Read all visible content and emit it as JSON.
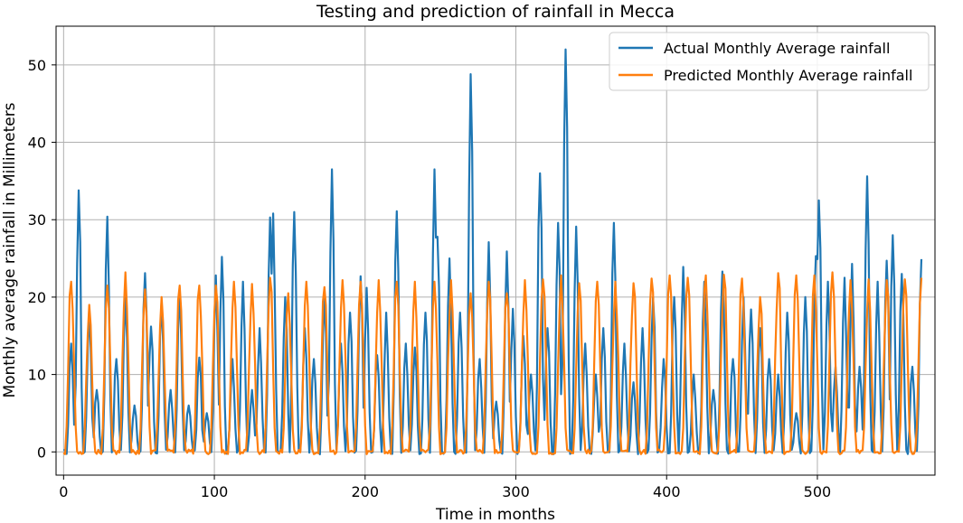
{
  "chart_data": {
    "type": "line",
    "title": "Testing and prediction of rainfall in Mecca",
    "xlabel": "Time in months",
    "ylabel": "Monthly average rainfall in Millimeters",
    "xlim": [
      -5,
      578
    ],
    "ylim": [
      -3,
      55
    ],
    "x_ticks": [
      0,
      100,
      200,
      300,
      400,
      500
    ],
    "y_ticks": [
      0,
      10,
      20,
      30,
      40,
      50
    ],
    "grid": true,
    "legend_position": "top-right",
    "series": [
      {
        "name": "Actual Monthly Average rainfall",
        "color": "#1f77b4",
        "peaks": [
          [
            5,
            14
          ],
          [
            10,
            33.8
          ],
          [
            17,
            18.5
          ],
          [
            22,
            8
          ],
          [
            29,
            30.4
          ],
          [
            35,
            12
          ],
          [
            41,
            20
          ],
          [
            47,
            6
          ],
          [
            54,
            23.1
          ],
          [
            58,
            16.2
          ],
          [
            65,
            19.5
          ],
          [
            71,
            8
          ],
          [
            77,
            21
          ],
          [
            83,
            6
          ],
          [
            90,
            12.2
          ],
          [
            95,
            5
          ],
          [
            101,
            22.8
          ],
          [
            105,
            25.2
          ],
          [
            112,
            12
          ],
          [
            119,
            22
          ],
          [
            125,
            8
          ],
          [
            130,
            16
          ],
          [
            137,
            30.3
          ],
          [
            139,
            30.8
          ],
          [
            147,
            20
          ],
          [
            153,
            31
          ],
          [
            160,
            16
          ],
          [
            166,
            12
          ],
          [
            173,
            20
          ],
          [
            178,
            36.5
          ],
          [
            184,
            14
          ],
          [
            190,
            18
          ],
          [
            197,
            22.7
          ],
          [
            201,
            21.2
          ],
          [
            208,
            12.5
          ],
          [
            214,
            18
          ],
          [
            221,
            31.1
          ],
          [
            227,
            14
          ],
          [
            233,
            13.5
          ],
          [
            240,
            18
          ],
          [
            246,
            36.5
          ],
          [
            248,
            27.8
          ],
          [
            256,
            25
          ],
          [
            263,
            18
          ],
          [
            270,
            48.8
          ],
          [
            276,
            12
          ],
          [
            282,
            27.1
          ],
          [
            287,
            6.5
          ],
          [
            294,
            25.9
          ],
          [
            298,
            18.5
          ],
          [
            305,
            15
          ],
          [
            310,
            10
          ],
          [
            316,
            36
          ],
          [
            321,
            16
          ],
          [
            328,
            29.6
          ],
          [
            333,
            52
          ],
          [
            340,
            29.1
          ],
          [
            346,
            14
          ],
          [
            353,
            10
          ],
          [
            358,
            16
          ],
          [
            365,
            29.6
          ],
          [
            372,
            14
          ],
          [
            378,
            9
          ],
          [
            384,
            16
          ],
          [
            391,
            20
          ],
          [
            398,
            12
          ],
          [
            405,
            20
          ],
          [
            411,
            23.9
          ],
          [
            418,
            10
          ],
          [
            425,
            22
          ],
          [
            431,
            8
          ],
          [
            437,
            23.3
          ],
          [
            444,
            12
          ],
          [
            451,
            20
          ],
          [
            456,
            18.4
          ],
          [
            462,
            16
          ],
          [
            468,
            12
          ],
          [
            474,
            10
          ],
          [
            480,
            18
          ],
          [
            486,
            5
          ],
          [
            492,
            20
          ],
          [
            499,
            25.3
          ],
          [
            501,
            32.5
          ],
          [
            507,
            22
          ],
          [
            512,
            11
          ],
          [
            518,
            22.5
          ],
          [
            523,
            24.3
          ],
          [
            528,
            11
          ],
          [
            533,
            35.6
          ],
          [
            540,
            22
          ],
          [
            546,
            24.7
          ],
          [
            550,
            28
          ],
          [
            556,
            23
          ],
          [
            563,
            11
          ],
          [
            569,
            24.9
          ]
        ]
      },
      {
        "name": "Predicted Monthly Average rainfall",
        "color": "#ff7f0e",
        "peaks": [
          [
            5,
            22
          ],
          [
            17,
            19
          ],
          [
            29,
            21.5
          ],
          [
            41,
            23.2
          ],
          [
            54,
            21
          ],
          [
            65,
            20
          ],
          [
            77,
            21.5
          ],
          [
            90,
            21.5
          ],
          [
            101,
            21.5
          ],
          [
            113,
            22
          ],
          [
            125,
            21.7
          ],
          [
            137,
            22.5
          ],
          [
            149,
            20.5
          ],
          [
            161,
            22
          ],
          [
            173,
            21.3
          ],
          [
            185,
            22.2
          ],
          [
            197,
            22
          ],
          [
            209,
            22.2
          ],
          [
            221,
            22
          ],
          [
            233,
            22
          ],
          [
            246,
            22
          ],
          [
            257,
            22.2
          ],
          [
            270,
            20.5
          ],
          [
            282,
            22
          ],
          [
            294,
            20.5
          ],
          [
            306,
            22.2
          ],
          [
            318,
            22.3
          ],
          [
            330,
            22.8
          ],
          [
            342,
            21.8
          ],
          [
            354,
            22
          ],
          [
            366,
            22
          ],
          [
            378,
            21.8
          ],
          [
            390,
            22.4
          ],
          [
            402,
            22.8
          ],
          [
            414,
            22.5
          ],
          [
            426,
            22.8
          ],
          [
            438,
            22.9
          ],
          [
            450,
            22.4
          ],
          [
            462,
            20
          ],
          [
            474,
            23.1
          ],
          [
            486,
            22.8
          ],
          [
            498,
            22.8
          ],
          [
            510,
            23.2
          ],
          [
            522,
            22.2
          ],
          [
            534,
            22.3
          ],
          [
            546,
            22.2
          ],
          [
            558,
            22.3
          ],
          [
            569,
            22.5
          ]
        ]
      }
    ]
  }
}
